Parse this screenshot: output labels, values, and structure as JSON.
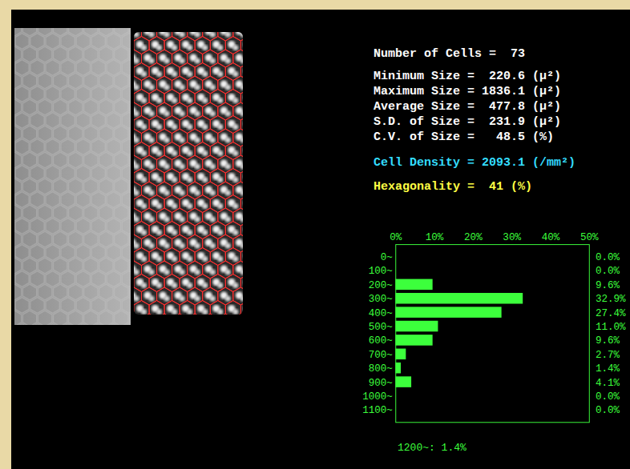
{
  "chart_data": {
    "type": "bar",
    "orientation": "horizontal",
    "categories": [
      "0~",
      "100~",
      "200~",
      "300~",
      "400~",
      "500~",
      "600~",
      "700~",
      "800~",
      "900~",
      "1000~",
      "1100~"
    ],
    "values": [
      0.0,
      0.0,
      9.6,
      32.9,
      27.4,
      11.0,
      9.6,
      2.7,
      1.4,
      4.1,
      0.0,
      0.0
    ],
    "value_labels": [
      "0.0%",
      "0.0%",
      "9.6%",
      "32.9%",
      "27.4%",
      "11.0%",
      "9.6%",
      "2.7%",
      "1.4%",
      "4.1%",
      "0.0%",
      "0.0%"
    ],
    "data_labels": true,
    "color": "#3cff3c",
    "xlim": [
      0,
      50
    ],
    "xticks": [
      {
        "value": 0,
        "label": "0%"
      },
      {
        "value": 10,
        "label": "10%"
      },
      {
        "value": 20,
        "label": "20%"
      },
      {
        "value": 30,
        "label": "30%"
      },
      {
        "value": 40,
        "label": "40%"
      },
      {
        "value": 50,
        "label": "50%"
      }
    ],
    "annotations": [
      "1200~: 1.4%"
    ]
  },
  "stats": [
    {
      "text": "Number of Cells =  73",
      "color": "#ffffff"
    },
    {
      "text": "Minimum Size =  220.6 (μ²)",
      "color": "#ffffff"
    },
    {
      "text": "Maximum Size = 1836.1 (μ²)",
      "color": "#ffffff"
    },
    {
      "text": "Average Size =  477.8 (μ²)",
      "color": "#ffffff"
    },
    {
      "text": "S.D. of Size =  231.9 (μ²)",
      "color": "#ffffff"
    },
    {
      "text": "C.V. of Size =   48.5 (%)",
      "color": "#ffffff"
    },
    {
      "text": "Cell Density = 2093.1 (/mm²)",
      "color": "#33ddff"
    },
    {
      "text": "Hexagonality =  41 (%)",
      "color": "#ffff44"
    }
  ]
}
